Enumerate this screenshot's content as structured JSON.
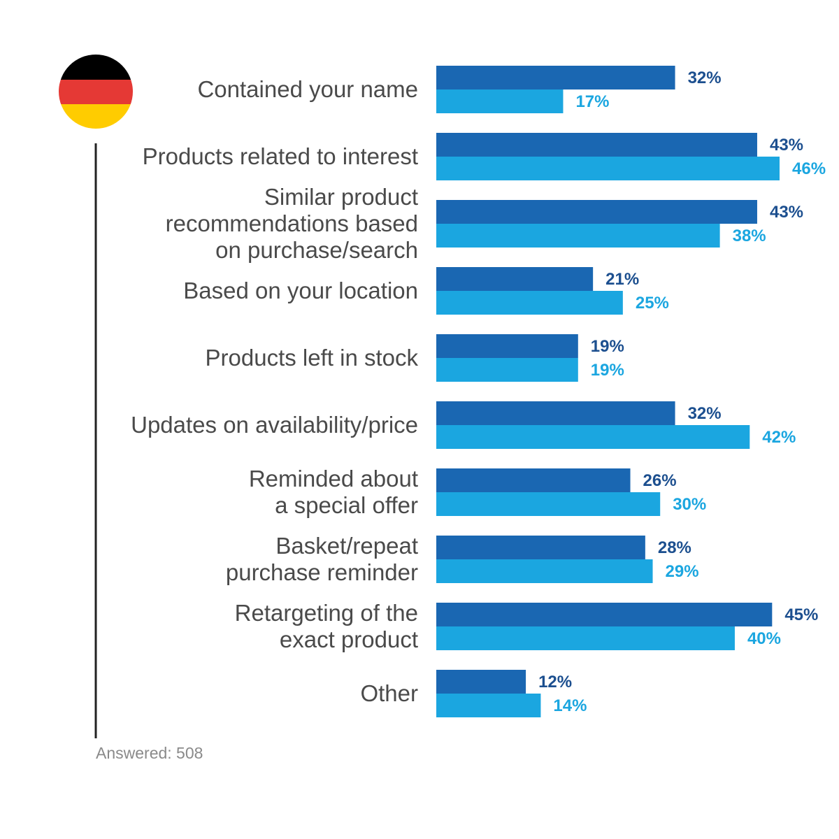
{
  "colors": {
    "series_dark": "#1a67b2",
    "series_light": "#1ba6e0",
    "label_dark": "#1c4f8f",
    "label_light": "#1ba6e0",
    "category_text": "#4a4a4a",
    "flag_black": "#000000",
    "flag_red": "#e53935",
    "flag_gold": "#ffcc00"
  },
  "flag": {
    "icon": "germany-flag-icon"
  },
  "footnote": "Answered: 508",
  "chart_data": {
    "type": "bar",
    "orientation": "horizontal",
    "categories": [
      [
        "Contained your name"
      ],
      [
        "Products related to interest"
      ],
      [
        "Similar product",
        "recommendations based",
        "on purchase/search"
      ],
      [
        "Based on your location"
      ],
      [
        "Products left in stock"
      ],
      [
        "Updates on availability/price"
      ],
      [
        "Reminded about",
        "a special offer"
      ],
      [
        "Basket/repeat",
        "purchase reminder"
      ],
      [
        "Retargeting of the",
        "exact product"
      ],
      [
        "Other"
      ]
    ],
    "series": [
      {
        "values": [
          32,
          43,
          43,
          21,
          19,
          32,
          26,
          28,
          45,
          12
        ],
        "labels": [
          "32%",
          "43%",
          "43%",
          "21%",
          "19%",
          "32%",
          "26%",
          "28%",
          "45%",
          "12%"
        ]
      },
      {
        "values": [
          17,
          46,
          38,
          25,
          19,
          42,
          30,
          29,
          40,
          14
        ],
        "labels": [
          "17%",
          "46%",
          "38%",
          "25%",
          "19%",
          "42%",
          "30%",
          "29%",
          "40%",
          "14%"
        ]
      }
    ],
    "xlim": [
      0,
      46
    ],
    "grid": false,
    "legend": "none"
  }
}
